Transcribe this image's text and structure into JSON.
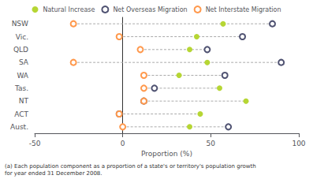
{
  "chart_data": {
    "type": "scatter",
    "categories": [
      "NSW",
      "Vic.",
      "QLD",
      "SA",
      "WA",
      "Tas.",
      "NT",
      "ACT",
      "Aust."
    ],
    "series": [
      {
        "name": "Natural Increase",
        "marker": "filled",
        "values": [
          57,
          42,
          38,
          48,
          32,
          55,
          70,
          44,
          38
        ]
      },
      {
        "name": "Net Overseas Migration",
        "marker": "open",
        "values": [
          85,
          68,
          48,
          90,
          58,
          18,
          12,
          -2,
          60
        ]
      },
      {
        "name": "Net Interstate Migration",
        "marker": "open",
        "values": [
          -28,
          -2,
          10,
          -28,
          12,
          12,
          12,
          -2,
          0
        ]
      }
    ],
    "xlabel": "Proportion (%)",
    "xlim": [
      -50,
      100
    ],
    "xticks": [
      -50,
      0,
      50,
      100
    ],
    "annotations": [
      "(a) Each population component as a proportion of a state's or territory's population growth\nfor year ended 31 December 2008."
    ],
    "legend": "top",
    "grid": false
  }
}
